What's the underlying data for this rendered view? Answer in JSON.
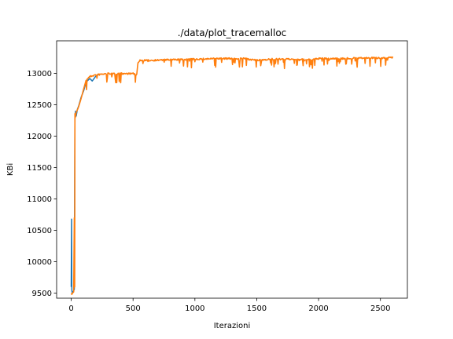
{
  "chart_data": {
    "type": "line",
    "title": "./data/plot_tracemalloc",
    "xlabel": "Iterazioni",
    "ylabel": "KBi",
    "xlim": [
      -118,
      2718
    ],
    "ylim": [
      9420,
      13520
    ],
    "xticks": [
      0,
      500,
      1000,
      1500,
      2000,
      2500
    ],
    "yticks": [
      9500,
      10000,
      10500,
      11000,
      11500,
      12000,
      12500,
      13000
    ],
    "xtick_labels": [
      "0",
      "500",
      "1000",
      "1500",
      "2000",
      "2500"
    ],
    "ytick_labels": [
      "9500",
      "10000",
      "10500",
      "11000",
      "11500",
      "12000",
      "12500",
      "13000"
    ],
    "grid": false,
    "colors": {
      "blue": "#1f77b4",
      "orange": "#ff7f0e"
    },
    "series": [
      {
        "color": "#1f77b4",
        "x": [
          0,
          3,
          5,
          8,
          15,
          25,
          30,
          32,
          35,
          40,
          50,
          60,
          80,
          100,
          120,
          150,
          170,
          200,
          220
        ],
        "y": [
          9600,
          10680,
          9550,
          9500,
          9520,
          9560,
          12300,
          12330,
          12400,
          12320,
          12430,
          12480,
          12620,
          12720,
          12860,
          12920,
          12880,
          12960,
          12980
        ]
      },
      {
        "color": "#ff7f0e",
        "x": [
          0,
          5,
          10,
          20,
          25,
          28,
          30,
          33,
          40,
          50,
          60,
          80,
          100,
          120,
          140,
          160,
          200,
          300,
          400,
          500,
          530,
          540,
          600,
          800,
          1000,
          1200,
          1400,
          1500,
          1600,
          1800,
          1950,
          2000,
          2200,
          2400,
          2550,
          2600
        ],
        "y": [
          9500,
          9480,
          9500,
          9520,
          10700,
          9600,
          12360,
          12300,
          12380,
          12420,
          12470,
          12600,
          12750,
          12890,
          12950,
          12970,
          12990,
          13010,
          13010,
          13010,
          12990,
          13220,
          13220,
          13230,
          13240,
          13250,
          13250,
          13220,
          13240,
          13240,
          13230,
          13250,
          13250,
          13260,
          13260,
          13270
        ]
      }
    ]
  }
}
